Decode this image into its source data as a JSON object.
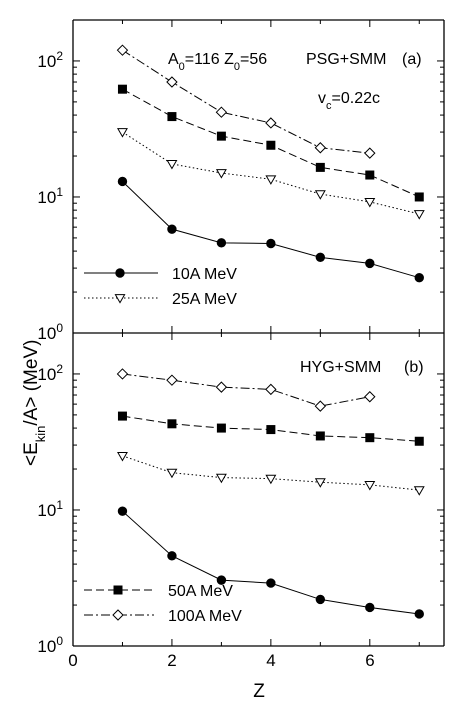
{
  "chart_data": [
    {
      "type": "line",
      "panel": "(a)",
      "yscale": "log",
      "xlim": [
        0,
        7.5
      ],
      "ylim": [
        1,
        200
      ],
      "annotations": {
        "nucleus_a0": "0",
        "nucleus_a_base": "A",
        "nucleus_a_eq": "=116 ",
        "nucleus_z_base": "Z",
        "nucleus_z_sub": "0",
        "nucleus_z_eq": "=56",
        "model": "PSG+SMM",
        "panel_label": "(a)",
        "vc_base": "v",
        "vc_sub": "c",
        "vc_eq": "=0.22c"
      },
      "legend": [
        "10A MeV",
        "25A MeV"
      ],
      "series": [
        {
          "name": "10A MeV",
          "marker": "filled-circle",
          "dash": "solid",
          "x": [
            1,
            2,
            3,
            4,
            5,
            6,
            7
          ],
          "y": [
            13,
            5.8,
            4.6,
            4.55,
            3.6,
            3.25,
            2.55
          ]
        },
        {
          "name": "25A MeV",
          "marker": "open-triangle-down",
          "dash": "dotted",
          "x": [
            1,
            2,
            3,
            4,
            5,
            6,
            7
          ],
          "y": [
            30,
            17.5,
            15,
            13.5,
            10.5,
            9.2,
            7.5
          ]
        },
        {
          "name": "50A MeV",
          "marker": "filled-square",
          "dash": "dashed",
          "x": [
            1,
            2,
            3,
            4,
            5,
            6,
            7
          ],
          "y": [
            62,
            39,
            28,
            24,
            16.5,
            14.5,
            10
          ]
        },
        {
          "name": "100A MeV",
          "marker": "open-diamond",
          "dash": "dashdot",
          "x": [
            1,
            2,
            3,
            4,
            5,
            6
          ],
          "y": [
            120,
            70,
            42,
            35,
            23,
            21
          ]
        }
      ]
    },
    {
      "type": "line",
      "panel": "(b)",
      "yscale": "log",
      "xlim": [
        0,
        7.5
      ],
      "ylim": [
        1,
        200
      ],
      "annotations": {
        "model": "HYG+SMM",
        "panel_label": "(b)"
      },
      "legend": [
        "50A MeV",
        "100A MeV"
      ],
      "series": [
        {
          "name": "10A MeV",
          "marker": "filled-circle",
          "dash": "solid",
          "x": [
            1,
            2,
            3,
            4,
            5,
            6,
            7
          ],
          "y": [
            9.8,
            4.6,
            3.05,
            2.9,
            2.2,
            1.92,
            1.72
          ]
        },
        {
          "name": "25A MeV",
          "marker": "open-triangle-down",
          "dash": "dotted",
          "x": [
            1,
            2,
            3,
            4,
            5,
            6,
            7
          ],
          "y": [
            25,
            18.8,
            17.3,
            17,
            16,
            15.3,
            14
          ]
        },
        {
          "name": "50A MeV",
          "marker": "filled-square",
          "dash": "dashed",
          "x": [
            1,
            2,
            3,
            4,
            5,
            6,
            7
          ],
          "y": [
            49,
            43,
            40,
            39,
            35,
            34,
            32
          ]
        },
        {
          "name": "100A MeV",
          "marker": "open-diamond",
          "dash": "dashdot",
          "x": [
            1,
            2,
            3,
            4,
            5,
            6
          ],
          "y": [
            100,
            90,
            80,
            77,
            58,
            68
          ]
        }
      ]
    }
  ],
  "axes": {
    "xlabel": "Z",
    "ylabel_open": "<E",
    "ylabel_sub": "kin",
    "ylabel_close": "/A> (MeV)",
    "xticks": [
      "0",
      "2",
      "4",
      "6"
    ],
    "ytick_base": "10",
    "ytick_exps": [
      "0",
      "1",
      "2"
    ]
  }
}
